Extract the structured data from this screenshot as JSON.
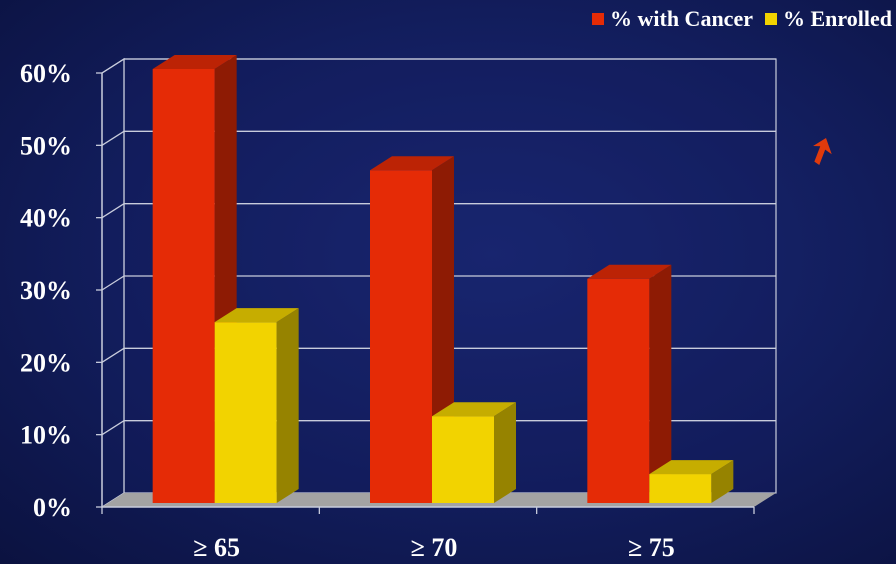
{
  "chart_data": {
    "type": "bar",
    "style": "3d-clustered",
    "categories": [
      "≥ 65",
      "≥ 70",
      "≥ 75"
    ],
    "series": [
      {
        "name": "% with Cancer",
        "values": [
          60,
          46,
          31
        ],
        "color": "#e52b06"
      },
      {
        "name": "% Enrolled",
        "values": [
          25,
          12,
          4
        ],
        "color": "#f2d300"
      }
    ],
    "yticks": [
      "0%",
      "10%",
      "20%",
      "30%",
      "40%",
      "50%",
      "60%"
    ],
    "ylim": [
      0,
      60
    ],
    "grid": true,
    "legend_position": "top-right",
    "title": "",
    "xlabel": "",
    "ylabel": ""
  },
  "colors": {
    "background": "#121d5c",
    "gridline": "#c8ccdc",
    "floor": "#a3a3a3",
    "text": "#ffffff",
    "pointer": "#e03a0c"
  },
  "decor": {
    "pointer_icon": "arrow-cursor-icon"
  }
}
